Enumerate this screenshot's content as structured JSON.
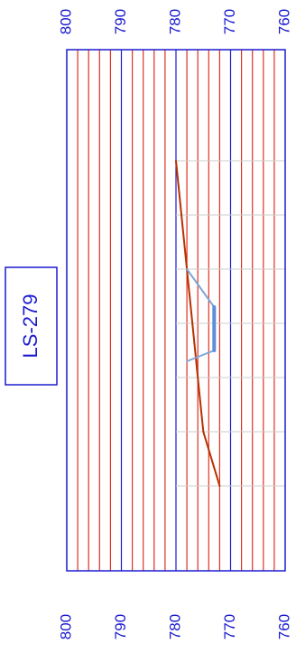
{
  "chart_data": {
    "type": "line",
    "orientation": "rotated-90",
    "label": "LS-279",
    "ylim": [
      760,
      800
    ],
    "minor_step": 2,
    "major_step": 10,
    "tick_labels": [
      "800",
      "790",
      "780",
      "770",
      "760"
    ],
    "colors": {
      "major_grid": "#1a1ad0",
      "minor_grid": "#e03020",
      "frame": "#1a1ad0",
      "ground_line": "#b83000",
      "channel": "#7fa6d8",
      "water": "#5b8fd8",
      "station_grid": "#cccccc"
    },
    "stations": [
      0,
      20,
      40,
      60,
      80,
      100,
      120
    ],
    "series": [
      {
        "kind": "ground",
        "x": [
          0,
          40,
          60,
          80,
          100,
          120
        ],
        "y": [
          780,
          778,
          777,
          776,
          775,
          772
        ]
      },
      {
        "kind": "channel",
        "x": [
          40,
          54,
          70,
          74
        ],
        "y": [
          778,
          773,
          773,
          778
        ]
      },
      {
        "kind": "water",
        "x": [
          54,
          70
        ],
        "y": [
          773,
          773
        ]
      }
    ]
  }
}
